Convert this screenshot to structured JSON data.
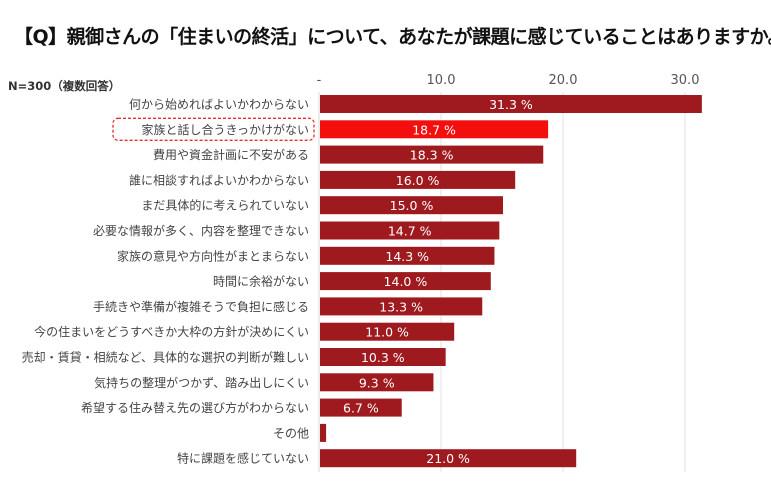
{
  "chart_data": {
    "type": "bar",
    "orientation": "horizontal",
    "title": "【Q】親御さんの「住まいの終活」について、あなたが課題に感じていることはありますか。",
    "note": "N=300（複数回答）",
    "unit": "%",
    "xlim": [
      0,
      32
    ],
    "ticks": [
      {
        "value": 0,
        "label": "-"
      },
      {
        "value": 10,
        "label": "10.0"
      },
      {
        "value": 20,
        "label": "20.0"
      },
      {
        "value": 30,
        "label": "30.0"
      }
    ],
    "grid": true,
    "colors": {
      "bar": "#9e1a1e",
      "highlight": "#f40f0f",
      "label": "#444444"
    },
    "highlight_index": 1,
    "categories": [
      "何から始めればよいかわからない",
      "家族と話し合うきっかけがない",
      "費用や資金計画に不安がある",
      "誰に相談すればよいかわからない",
      "まだ具体的に考えられていない",
      "必要な情報が多く、内容を整理できない",
      "家族の意見や方向性がまとまらない",
      "時間に余裕がない",
      "手続きや準備が複雑そうで負担に感じる",
      "今の住まいをどうすべきか大枠の方針が決めにくい",
      "売却・賃貸・相続など、具体的な選択の判断が難しい",
      "気持ちの整理がつかず、踏み出しにくい",
      "希望する住み替え先の選び方がわからない",
      "その他",
      "特に課題を感じていない"
    ],
    "values": [
      31.3,
      18.7,
      18.3,
      16.0,
      15.0,
      14.7,
      14.3,
      14.0,
      13.3,
      11.0,
      10.3,
      9.3,
      6.7,
      0.5,
      21.0
    ],
    "data_labels": [
      "31.3 %",
      "18.7 %",
      "18.3 %",
      "16.0 %",
      "15.0 %",
      "14.7 %",
      "14.3 %",
      "14.0 %",
      "13.3 %",
      "11.0 %",
      "10.3 %",
      "9.3 %",
      "6.7 %",
      "",
      "21.0 %"
    ]
  }
}
